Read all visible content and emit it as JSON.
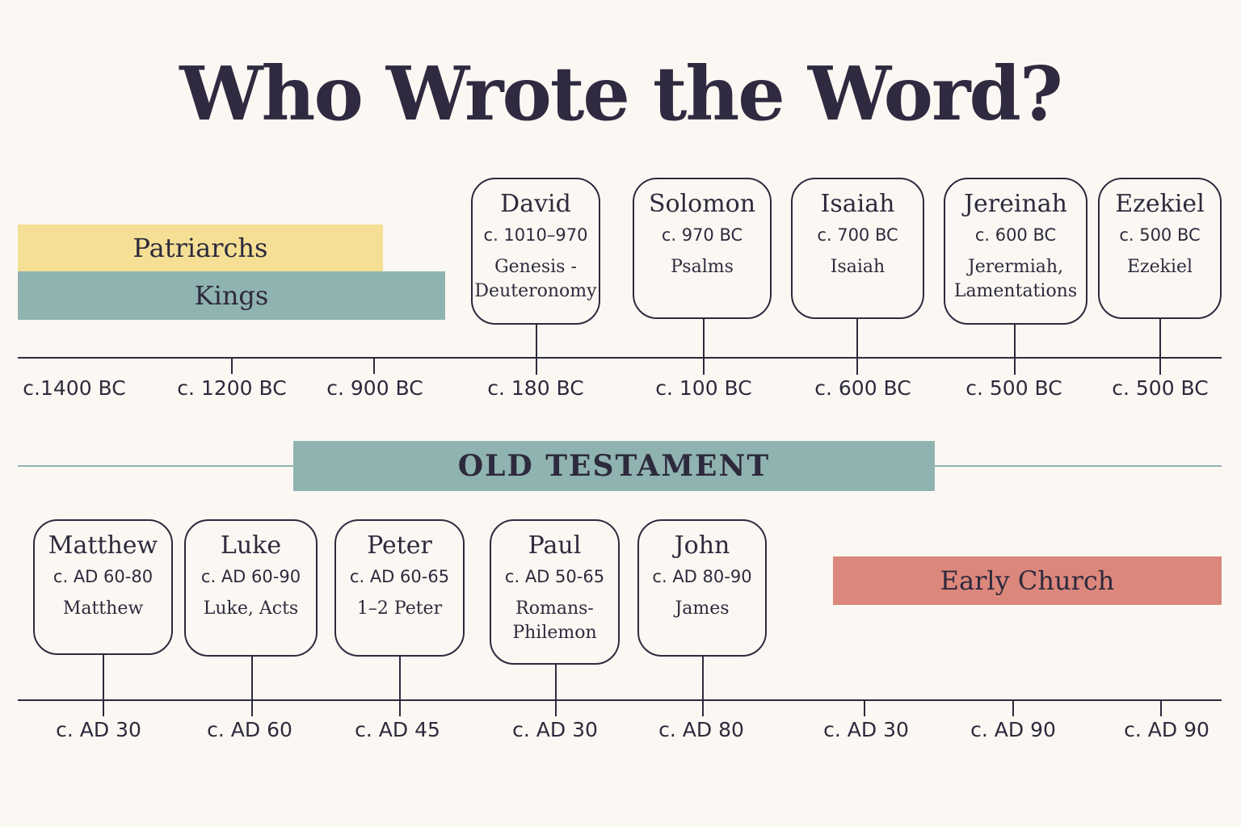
{
  "title": "Who Wrote the Word?",
  "colors": {
    "background": "#fbf8f3",
    "patriarchs": "#f4df95",
    "kings": "#8fb3b0",
    "old_testament": "#8fb3b0",
    "early_church": "#dc877c",
    "ink": "#2e2a3d"
  },
  "bands": {
    "patriarchs": "Patriarchs",
    "kings": "Kings",
    "early_church": "Early Church"
  },
  "section_label": "OLD TESTAMENT",
  "top_timeline": {
    "ticks": [
      "c.1400 BC",
      "c. 1200 BC",
      "c. 900 BC",
      "c. 180 BC",
      "c. 100 BC",
      "c. 600 BC",
      "c. 500 BC",
      "c. 500 BC"
    ],
    "authors": [
      {
        "name": "David",
        "date": "c. 1010–970",
        "books": "Genesis -\nDeuteronomy"
      },
      {
        "name": "Solomon",
        "date": "c. 970 BC",
        "books": "Psalms"
      },
      {
        "name": "Isaiah",
        "date": "c. 700 BC",
        "books": "Isaiah"
      },
      {
        "name": "Jereinah",
        "date": "c. 600 BC",
        "books": "Jerermiah,\nLamentations"
      },
      {
        "name": "Ezekiel",
        "date": "c. 500 BC",
        "books": "Ezekiel"
      }
    ]
  },
  "bottom_timeline": {
    "ticks": [
      "c. AD 30",
      "c. AD 60",
      "c. AD 45",
      "c. AD 30",
      "c. AD 80",
      "c. AD 30",
      "c. AD 90",
      "c. AD 90"
    ],
    "authors": [
      {
        "name": "Matthew",
        "date": "c. AD 60-80",
        "books": "Matthew"
      },
      {
        "name": "Luke",
        "date": "c. AD 60-90",
        "books": "Luke, Acts"
      },
      {
        "name": "Peter",
        "date": "c. AD 60-65",
        "books": "1–2 Peter"
      },
      {
        "name": "Paul",
        "date": "c. AD 50-65",
        "books": "Romans-\nPhilemon"
      },
      {
        "name": "John",
        "date": "c. AD 80-90",
        "books": "James"
      }
    ]
  }
}
